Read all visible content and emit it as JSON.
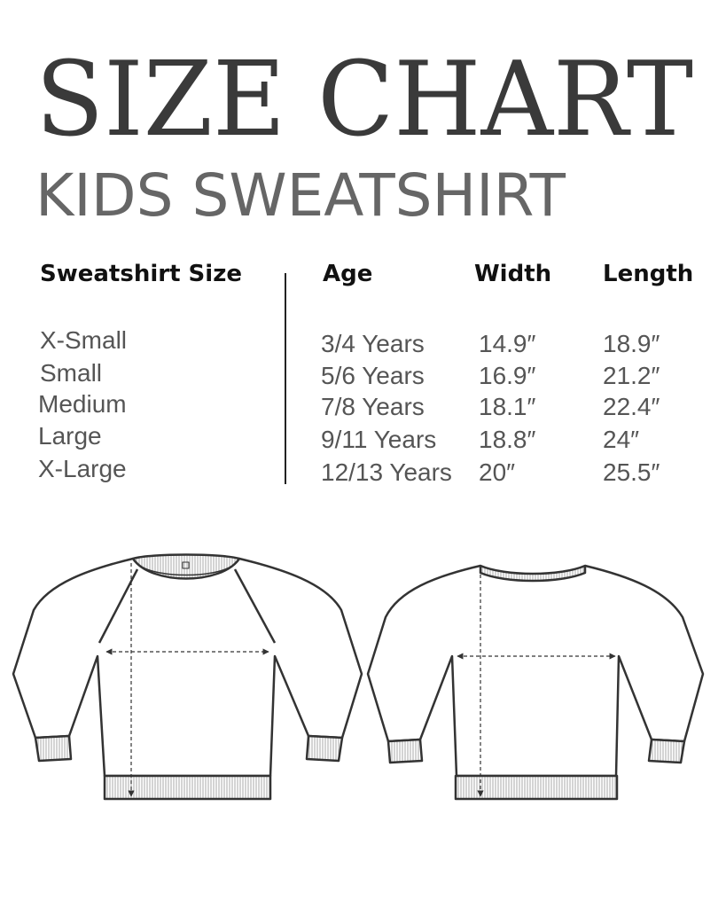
{
  "title": "SIZE CHART",
  "subtitle": "KIDS SWEATSHIRT",
  "table": {
    "headers": [
      "Sweatshirt Size",
      "Age",
      "Width",
      "Length"
    ],
    "rows": [
      [
        "X-Small",
        "3/4 Years",
        "14.9″",
        "18.9″"
      ],
      [
        "Small",
        "5/6 Years",
        "16.9″",
        "21.2″"
      ],
      [
        "Medium",
        "7/8 Years",
        "18.1″",
        "22.4″"
      ],
      [
        "Large",
        "9/11 Years",
        "18.8″",
        "24″"
      ],
      [
        "X-Large",
        "12/13 Years",
        "20″",
        "25.5″"
      ]
    ]
  },
  "colors": {
    "title": "#3a3a3a",
    "subtitle": "#666666",
    "text": "#555555",
    "header": "#111111"
  }
}
